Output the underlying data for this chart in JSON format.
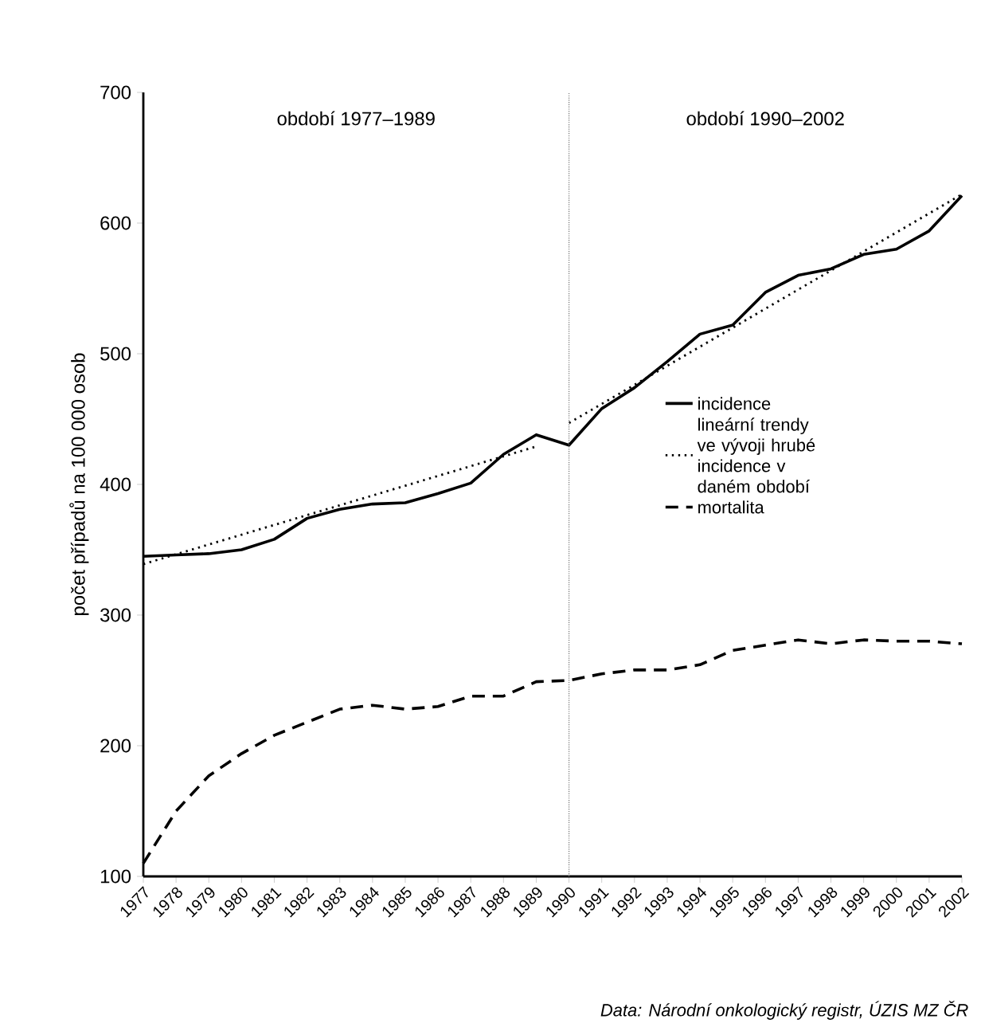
{
  "chart_data": {
    "type": "line",
    "ylabel": "počet případů na 100 000 osob",
    "annotations": [
      "období 1977–1989",
      "období 1990–2002",
      "*Data: Národní onkologický registr, ÚZIS MZ ČR*"
    ],
    "x": [
      1977,
      1978,
      1979,
      1980,
      1981,
      1982,
      1983,
      1984,
      1985,
      1986,
      1987,
      1988,
      1989,
      1990,
      1991,
      1992,
      1993,
      1994,
      1995,
      1996,
      1997,
      1998,
      1999,
      2000,
      2001,
      2002
    ],
    "series": [
      {
        "name": "incidence",
        "color": "#000000",
        "line_style": "solid",
        "values": [
          345,
          346,
          347,
          350,
          358,
          374,
          381,
          385,
          386,
          393,
          401,
          423,
          438,
          430,
          458,
          474,
          494,
          515,
          522,
          547,
          560,
          565,
          576,
          580,
          594,
          621
        ]
      },
      {
        "name": "lineární trendy ve vývoji hrubé incidence v daném období",
        "type": "line",
        "color": "#000000",
        "line_style": "dotted",
        "x": [
          1977,
          1989
        ],
        "values": [
          339,
          429
        ]
      },
      {
        "type": "line",
        "color": "#000000",
        "line_style": "dotted",
        "x": [
          1990,
          2002
        ],
        "values": [
          447,
          622
        ]
      },
      {
        "name": "mortalita",
        "color": "#000000",
        "line_style": "dashed",
        "values": [
          110,
          150,
          177,
          194,
          208,
          218,
          228,
          231,
          228,
          230,
          238,
          238,
          249,
          250,
          255,
          258,
          258,
          262,
          273,
          277,
          281,
          278,
          281,
          280,
          280,
          278
        ]
      }
    ],
    "xlim": [
      1977,
      2002
    ],
    "ylim": [
      100,
      700
    ],
    "xticks": [
      1977,
      1978,
      1979,
      1980,
      1981,
      1982,
      1983,
      1984,
      1985,
      1986,
      1987,
      1988,
      1989,
      1990,
      1991,
      1992,
      1993,
      1994,
      1995,
      1996,
      1997,
      1998,
      1999,
      2000,
      2001,
      2002
    ],
    "yticks": [
      100,
      200,
      300,
      400,
      500,
      600,
      700
    ],
    "ref_lines": [
      {
        "axis": "x",
        "value": 1990,
        "color": "#808080",
        "line_style": "dotted"
      }
    ],
    "legend": "right"
  }
}
